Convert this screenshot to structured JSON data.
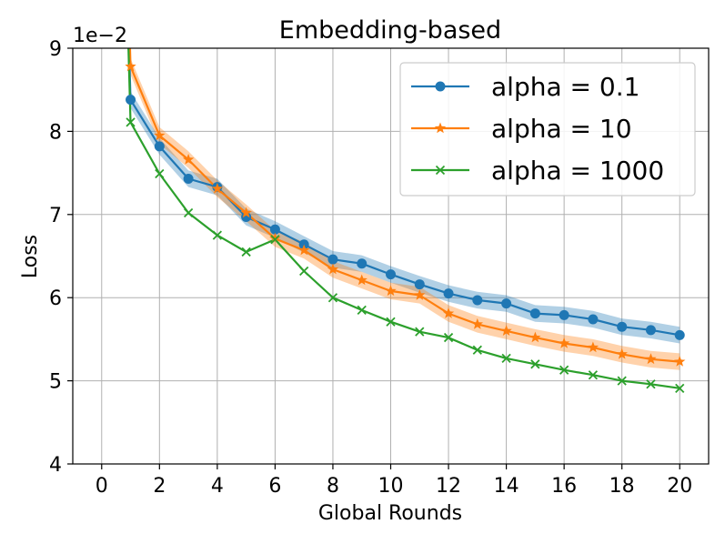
{
  "chart_data": {
    "type": "line",
    "title": "Embedding-based",
    "xlabel": "Global Rounds",
    "ylabel": "Loss",
    "offset_label": "1e−2",
    "xlim": [
      -1,
      21
    ],
    "ylim": [
      4,
      9
    ],
    "xticks": [
      0,
      2,
      4,
      6,
      8,
      10,
      12,
      14,
      16,
      18,
      20
    ],
    "yticks": [
      4,
      5,
      6,
      7,
      8,
      9
    ],
    "grid": true,
    "legend_position": "top-right",
    "x": [
      1,
      2,
      3,
      4,
      5,
      6,
      7,
      8,
      9,
      10,
      11,
      12,
      13,
      14,
      15,
      16,
      17,
      18,
      19,
      20
    ],
    "series": [
      {
        "name": "alpha = 0.1",
        "color": "#1f77b4",
        "marker": "circle",
        "values": [
          8.38,
          7.82,
          7.43,
          7.33,
          6.97,
          6.82,
          6.64,
          6.46,
          6.41,
          6.28,
          6.16,
          6.05,
          5.97,
          5.93,
          5.81,
          5.79,
          5.74,
          5.65,
          5.61,
          5.55
        ],
        "band": 0.1
      },
      {
        "name": "alpha = 10",
        "color": "#ff7f0e",
        "marker": "star",
        "values": [
          8.78,
          7.95,
          7.66,
          7.31,
          7.02,
          6.71,
          6.57,
          6.34,
          6.21,
          6.08,
          6.03,
          5.81,
          5.68,
          5.6,
          5.52,
          5.45,
          5.4,
          5.32,
          5.26,
          5.23
        ],
        "band": 0.1
      },
      {
        "name": "alpha = 1000",
        "color": "#2ca02c",
        "marker": "x",
        "values": [
          8.11,
          7.49,
          7.02,
          6.75,
          6.55,
          6.7,
          6.32,
          6.0,
          5.85,
          5.71,
          5.59,
          5.52,
          5.37,
          5.27,
          5.2,
          5.13,
          5.07,
          5.0,
          4.96,
          4.91
        ],
        "band": 0
      }
    ]
  }
}
